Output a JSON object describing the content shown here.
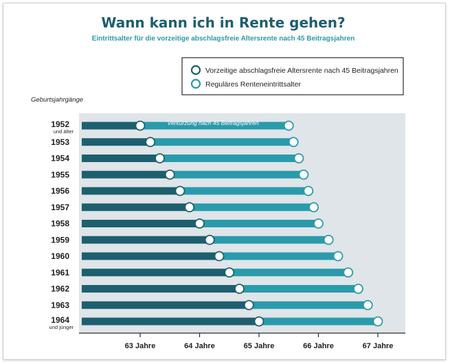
{
  "colors": {
    "title": "#1d5f6f",
    "subtitle": "#2a9bab",
    "dark_bar": "#1d5f6f",
    "light_bar": "#2a9bab",
    "plot_bg": "#dfe5e8",
    "axis": "#2b2b2b",
    "text": "#1f1f1f"
  },
  "chart_data": {
    "type": "bar",
    "orientation": "horizontal",
    "stacked_range": true,
    "title": "Wann kann ich in Rente gehen?",
    "subtitle": "Eintrittsalter für die vorzeitige abschlagsfreie Altersrente nach 45 Beitragsjahren",
    "ylabel": "Geburtsjahrgänge",
    "xlim": [
      62,
      67.5
    ],
    "xticks": [
      63,
      64,
      65,
      66,
      67
    ],
    "xtick_labels": [
      "63 Jahre",
      "64 Jahre",
      "65 Jahre",
      "66 Jahre",
      "67 Jahre"
    ],
    "legend_position": "top-right",
    "categories": [
      "1952",
      "1953",
      "1954",
      "1955",
      "1956",
      "1957",
      "1958",
      "1959",
      "1960",
      "1961",
      "1962",
      "1963",
      "1964"
    ],
    "category_sublabels": [
      "und älter",
      "",
      "",
      "",
      "",
      "",
      "",
      "",
      "",
      "",
      "",
      "",
      "und jünger"
    ],
    "series": [
      {
        "name": "Vorzeitige abschlagsfreie Altersrente nach 45 Beitragsjahren",
        "color": "#1d5f6f",
        "values": [
          63.0,
          63.17,
          63.33,
          63.5,
          63.67,
          63.83,
          64.0,
          64.17,
          64.33,
          64.5,
          64.67,
          64.83,
          65.0
        ]
      },
      {
        "name": "Reguläres Renteneintrittsalter",
        "color": "#2a9bab",
        "values": [
          65.5,
          65.58,
          65.67,
          65.75,
          65.83,
          65.92,
          66.0,
          66.17,
          66.33,
          66.5,
          66.67,
          66.83,
          67.0
        ]
      }
    ],
    "annotation": "Verkürzung nach 45 Beitragsjahren"
  }
}
